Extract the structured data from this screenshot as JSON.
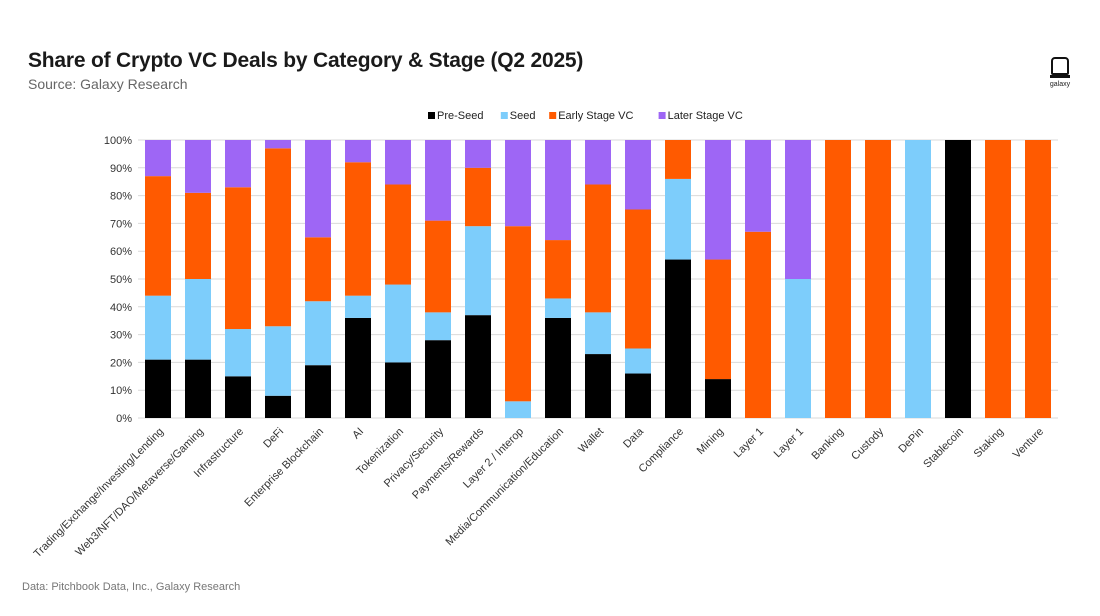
{
  "header": {
    "title": "Share of Crypto VC Deals by Category & Stage (Q2 2025)",
    "subtitle": "Source: Galaxy Research",
    "logo_text": "galaxy"
  },
  "footer": {
    "source": "Data: Pitchbook Data, Inc., Galaxy Research"
  },
  "colors": {
    "Pre-Seed": "#000000",
    "Seed": "#7dcdfb",
    "Early Stage VC": "#ff5a00",
    "Later Stage VC": "#9e66f5",
    "gridline": "#d9d9d9"
  },
  "chart_data": {
    "type": "bar",
    "stacked": true,
    "title": "Share of Crypto VC Deals by Category & Stage (Q2 2025)",
    "xlabel": "",
    "ylabel": "",
    "ylim": [
      0,
      100
    ],
    "y_ticks": [
      "0%",
      "10%",
      "20%",
      "30%",
      "40%",
      "50%",
      "60%",
      "70%",
      "80%",
      "90%",
      "100%"
    ],
    "legend_position": "top-center",
    "categories": [
      "Trading/Exchange/Investing/Lending",
      "Web3/NFT/DAO/Metaverse/Gaming",
      "Infrastructure",
      "DeFi",
      "Enterprise Blockchain",
      "AI",
      "Tokenization",
      "Privacy/Security",
      "Payments/Rewards",
      "Layer 2 / Interop",
      "Media/Communication/Education",
      "Wallet",
      "Data",
      "Compliance",
      "Mining",
      "Layer 1",
      "Layer 1",
      "Banking",
      "Custody",
      "DePin",
      "Stablecoin",
      "Staking",
      "Venture"
    ],
    "series": [
      {
        "name": "Pre-Seed",
        "values": [
          21,
          21,
          15,
          8,
          19,
          36,
          20,
          28,
          37,
          0,
          36,
          23,
          16,
          57,
          14,
          0,
          0,
          0,
          0,
          0,
          100,
          0,
          0
        ]
      },
      {
        "name": "Seed",
        "values": [
          23,
          29,
          17,
          25,
          23,
          8,
          28,
          10,
          32,
          6,
          7,
          15,
          9,
          29,
          0,
          0,
          50,
          0,
          0,
          100,
          0,
          0,
          0
        ]
      },
      {
        "name": "Early Stage VC",
        "values": [
          43,
          31,
          51,
          64,
          23,
          48,
          36,
          33,
          21,
          63,
          21,
          46,
          50,
          14,
          43,
          67,
          0,
          100,
          100,
          0,
          0,
          100,
          100
        ]
      },
      {
        "name": "Later Stage VC",
        "values": [
          13,
          19,
          17,
          3,
          35,
          8,
          16,
          29,
          10,
          31,
          36,
          16,
          25,
          0,
          43,
          33,
          50,
          0,
          0,
          0,
          0,
          0,
          0
        ]
      }
    ]
  }
}
